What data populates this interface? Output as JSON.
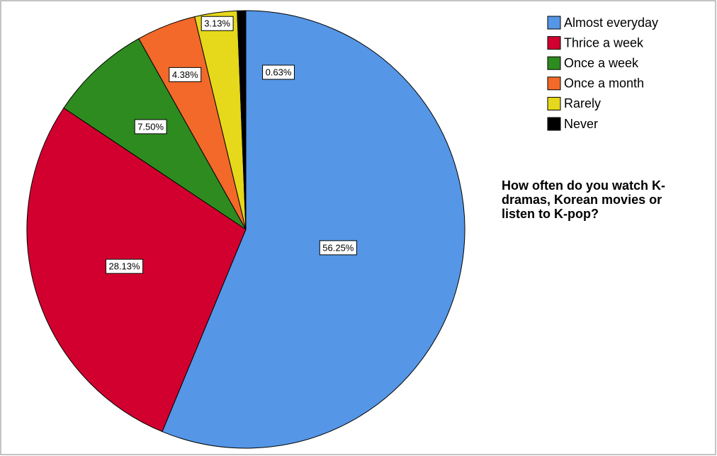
{
  "chart_data": {
    "type": "pie",
    "title": "How often do you watch K-dramas, Korean movies or listen to K-pop?",
    "categories": [
      "Almost everyday",
      "Thrice a week",
      "Once a week",
      "Once a month",
      "Rarely",
      "Never"
    ],
    "values": [
      56.25,
      28.13,
      7.5,
      4.38,
      3.13,
      0.63
    ],
    "value_labels": [
      "56.25%",
      "28.13%",
      "7.50%",
      "4.38%",
      "3.13%",
      "0.63%"
    ],
    "colors": [
      "#5596e6",
      "#d2002f",
      "#2e8b1f",
      "#f2692a",
      "#e6d81b",
      "#000000"
    ],
    "legend": "top-right"
  }
}
